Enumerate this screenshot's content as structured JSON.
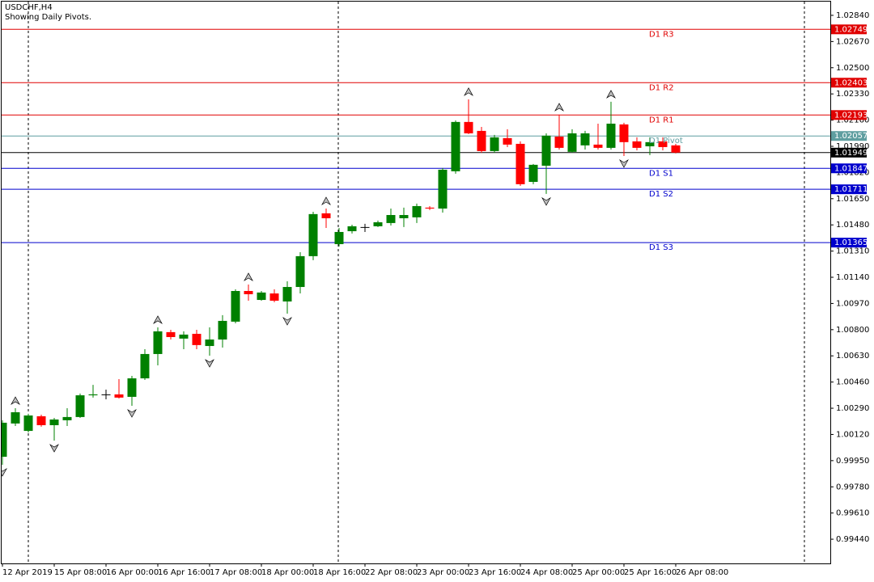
{
  "chart_data": {
    "type": "candlestick",
    "title": "USDCHF,H4",
    "subtitle": "Showing Daily Pivots.",
    "categories": [
      "12 Apr 2019",
      null,
      null,
      null,
      "15 Apr 08:00",
      null,
      null,
      null,
      "16 Apr 00:00",
      null,
      null,
      null,
      "16 Apr 16:00",
      null,
      null,
      null,
      "17 Apr 08:00",
      null,
      null,
      null,
      "18 Apr 00:00",
      null,
      null,
      null,
      "18 Apr 16:00",
      null,
      null,
      null,
      "22 Apr 08:00",
      null,
      null,
      null,
      "23 Apr 00:00",
      null,
      null,
      null,
      "23 Apr 16:00",
      null,
      null,
      null,
      "24 Apr 08:00",
      null,
      null,
      null,
      "25 Apr 00:00",
      null,
      null,
      null,
      "25 Apr 16:00",
      null,
      null,
      null,
      "26 Apr 08:00"
    ],
    "open": [
      0.99975,
      1.00191,
      1.00143,
      1.00238,
      1.0018,
      1.00212,
      1.00233,
      1.00374,
      1.0038,
      1.0038,
      1.00364,
      1.00484,
      1.00642,
      1.00784,
      1.00742,
      1.00773,
      1.00694,
      1.00736,
      1.00852,
      1.01051,
      1.00993,
      1.01035,
      1.00983,
      1.01077,
      1.01277,
      1.01555,
      1.01355,
      1.01439,
      1.01466,
      1.01471,
      1.01492,
      1.01523,
      1.01529,
      1.01592,
      1.01586,
      1.01828,
      1.02148,
      1.0209,
      1.01959,
      1.02043,
      1.02006,
      1.01759,
      1.01864,
      1.02053,
      1.01954,
      1.01996,
      1.02001,
      1.0198,
      1.02132,
      1.02022,
      1.0199,
      1.02022,
      1.01996
    ],
    "high": [
      1.00212,
      1.0029,
      1.00254,
      1.00248,
      1.00227,
      1.0029,
      1.00385,
      1.00442,
      1.00411,
      1.00479,
      1.005,
      1.00673,
      1.00815,
      1.00799,
      1.00789,
      1.00799,
      1.00815,
      1.00894,
      1.01062,
      1.01093,
      1.01051,
      1.01062,
      1.01114,
      1.01303,
      1.01565,
      1.01586,
      1.0146,
      1.01481,
      1.01487,
      1.01508,
      1.01586,
      1.01592,
      1.01618,
      1.01602,
      1.01849,
      1.02158,
      1.02295,
      1.02116,
      1.02064,
      1.02101,
      1.02022,
      1.01875,
      1.02074,
      1.02195,
      1.02101,
      1.0209,
      1.02137,
      1.02279,
      1.02143,
      1.02048,
      1.02048,
      1.02048,
      1.02006
    ],
    "low": [
      0.99923,
      1.00175,
      1.00133,
      1.0017,
      1.0008,
      1.00175,
      1.00227,
      1.00359,
      1.00348,
      1.00353,
      1.00306,
      1.00474,
      1.00568,
      1.00736,
      1.00673,
      1.00673,
      1.00631,
      1.00684,
      1.00841,
      1.00988,
      1.00988,
      1.00978,
      1.00904,
      1.01035,
      1.01251,
      1.0146,
      1.0134,
      1.01424,
      1.01434,
      1.01466,
      1.01476,
      1.01466,
      1.01492,
      1.01576,
      1.0156,
      1.01812,
      1.02069,
      1.01948,
      1.01948,
      1.01985,
      1.01733,
      1.01744,
      1.01681,
      1.01969,
      1.01948,
      1.01969,
      1.01969,
      1.01969,
      1.01927,
      1.01964,
      1.01933,
      1.01964,
      1.01944
    ],
    "close": [
      1.00196,
      1.00264,
      1.00243,
      1.0018,
      1.00217,
      1.00233,
      1.00374,
      1.0038,
      1.0038,
      1.00359,
      1.00484,
      1.00642,
      1.00789,
      1.00752,
      1.00768,
      1.007,
      1.00736,
      1.00857,
      1.01051,
      1.0103,
      1.01041,
      1.00988,
      1.01077,
      1.01277,
      1.0155,
      1.01523,
      1.01434,
      1.01471,
      1.01466,
      1.01497,
      1.01544,
      1.01544,
      1.01602,
      1.01586,
      1.01838,
      1.02148,
      1.02074,
      1.01959,
      1.02048,
      1.02001,
      1.01744,
      1.0187,
      1.02059,
      1.0198,
      1.02074,
      1.02074,
      1.0198,
      1.02137,
      1.02017,
      1.0198,
      1.02017,
      1.01985,
      1.01949
    ],
    "up_color": "#008000",
    "down_color": "#ff0000",
    "doji_color": "#000000",
    "ylim": [
      0.99283,
      1.02929
    ],
    "yticks": [
      {
        "value": 1.0284,
        "label": "1.02840"
      },
      {
        "value": 1.0267,
        "label": "1.02670"
      },
      {
        "value": 1.025,
        "label": "1.02500"
      },
      {
        "value": 1.0233,
        "label": "1.02330"
      },
      {
        "value": 1.0216,
        "label": "1.02160"
      },
      {
        "value": 1.0199,
        "label": "1.01990"
      },
      {
        "value": 1.0182,
        "label": "1.01820"
      },
      {
        "value": 1.0165,
        "label": "1.01650"
      },
      {
        "value": 1.0148,
        "label": "1.01480"
      },
      {
        "value": 1.0131,
        "label": "1.01310"
      },
      {
        "value": 1.0114,
        "label": "1.01140"
      },
      {
        "value": 1.0097,
        "label": "1.00970"
      },
      {
        "value": 1.008,
        "label": "1.00800"
      },
      {
        "value": 1.0063,
        "label": "1.00630"
      },
      {
        "value": 1.0046,
        "label": "1.00460"
      },
      {
        "value": 1.0029,
        "label": "1.00290"
      },
      {
        "value": 1.0012,
        "label": "1.00120"
      },
      {
        "value": 0.9995,
        "label": "0.99950"
      },
      {
        "value": 0.9978,
        "label": "0.99780"
      },
      {
        "value": 0.9961,
        "label": "0.99610"
      },
      {
        "value": 0.9944,
        "label": "0.99440"
      }
    ],
    "pivots": [
      {
        "name": "D1 R3",
        "value": 1.02749,
        "color": "#e00000"
      },
      {
        "name": "D1 R2",
        "value": 1.02403,
        "color": "#e00000"
      },
      {
        "name": "D1 R1",
        "value": 1.02193,
        "color": "#e00000"
      },
      {
        "name": "D1 Pivot",
        "value": 1.02057,
        "color": "#5f9ea0"
      },
      {
        "name": "D1 S1",
        "value": 1.01847,
        "color": "#0000cd"
      },
      {
        "name": "D1 S2",
        "value": 1.01711,
        "color": "#0000cd"
      },
      {
        "name": "D1 S3",
        "value": 1.01365,
        "color": "#0000cd"
      }
    ],
    "current_price": {
      "value": 1.01949,
      "color": "#000000"
    },
    "fractals_up": [
      1,
      12,
      19,
      25,
      36,
      43,
      47
    ],
    "fractals_down": [
      0,
      4,
      10,
      16,
      22,
      42,
      48
    ]
  }
}
